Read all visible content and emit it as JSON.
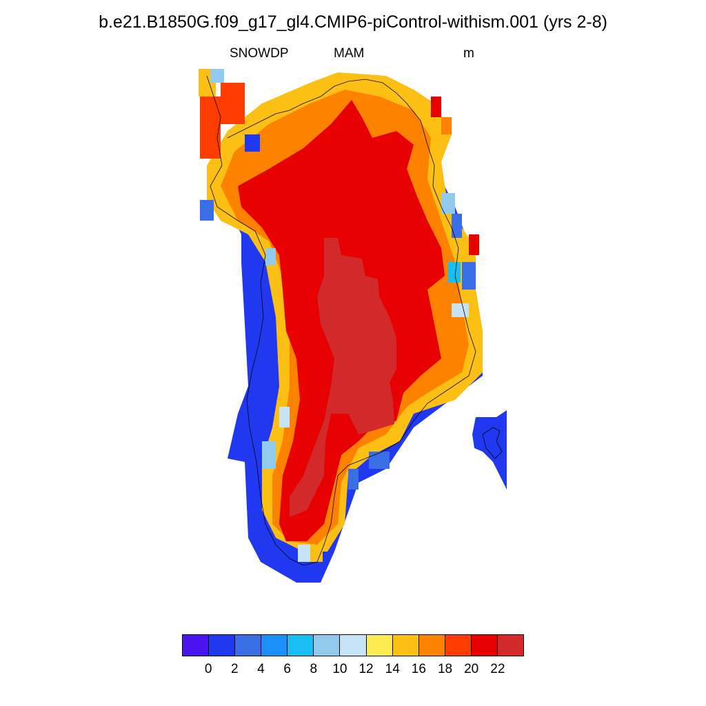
{
  "title": "b.e21.B1850G.f09_g17_gl4.CMIP6-piControl-withism.001 (yrs 2-8)",
  "variable": "SNOWDP",
  "season": "MAM",
  "units": "m",
  "colorbar": {
    "colors": [
      "#4a14f0",
      "#2038f0",
      "#3a6ee6",
      "#1a90f8",
      "#18bff2",
      "#92caee",
      "#c6e4f6",
      "#fceb55",
      "#fcbf14",
      "#fc8200",
      "#fc3c00",
      "#e60000",
      "#d22a2a"
    ],
    "tick_labels": [
      "0",
      "2",
      "4",
      "6",
      "8",
      "10",
      "12",
      "14",
      "16",
      "18",
      "20",
      "22"
    ]
  }
}
